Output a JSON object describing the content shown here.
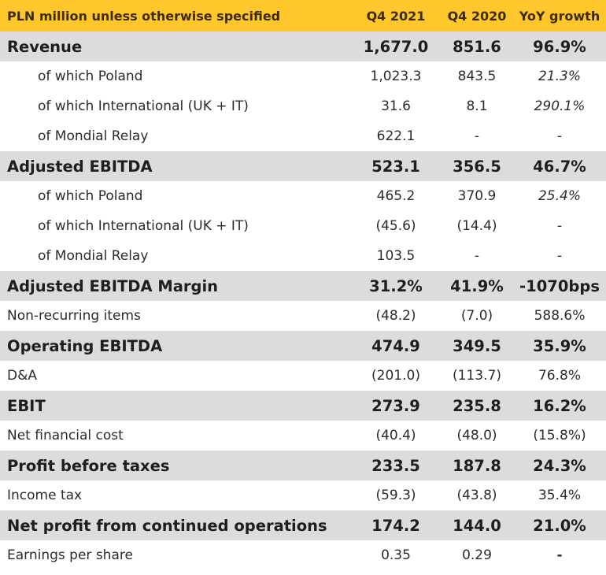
{
  "header": {
    "label": "PLN million unless otherwise specified",
    "q4_2021": "Q4 2021",
    "q4_2020": "Q4 2020",
    "yoy": "YoY growth"
  },
  "rows": [
    {
      "label": "Revenue",
      "q4_2021": "1,677.0",
      "q4_2020": "851.6",
      "yoy": "96.9%"
    },
    {
      "label": "of which Poland",
      "q4_2021": "1,023.3",
      "q4_2020": "843.5",
      "yoy": "21.3%"
    },
    {
      "label": "of which International (UK + IT)",
      "q4_2021": "31.6",
      "q4_2020": "8.1",
      "yoy": "290.1%"
    },
    {
      "label": "of Mondial Relay",
      "q4_2021": "622.1",
      "q4_2020": "-",
      "yoy": "-"
    },
    {
      "label": "Adjusted EBITDA",
      "q4_2021": "523.1",
      "q4_2020": "356.5",
      "yoy": "46.7%"
    },
    {
      "label": "of which Poland",
      "q4_2021": "465.2",
      "q4_2020": "370.9",
      "yoy": "25.4%"
    },
    {
      "label": "of which International (UK + IT)",
      "q4_2021": "(45.6)",
      "q4_2020": "(14.4)",
      "yoy": "-"
    },
    {
      "label": "of Mondial Relay",
      "q4_2021": "103.5",
      "q4_2020": "-",
      "yoy": "-"
    },
    {
      "label": "Adjusted EBITDA Margin",
      "q4_2021": "31.2%",
      "q4_2020": "41.9%",
      "yoy": "-1070bps"
    },
    {
      "label": "Non-recurring items",
      "q4_2021": "(48.2)",
      "q4_2020": "(7.0)",
      "yoy": "588.6%"
    },
    {
      "label": "Operating EBITDA",
      "q4_2021": "474.9",
      "q4_2020": "349.5",
      "yoy": "35.9%"
    },
    {
      "label": "D&A",
      "q4_2021": "(201.0)",
      "q4_2020": "(113.7)",
      "yoy": "76.8%"
    },
    {
      "label": "EBIT",
      "q4_2021": "273.9",
      "q4_2020": "235.8",
      "yoy": "16.2%"
    },
    {
      "label": "Net financial cost",
      "q4_2021": "(40.4)",
      "q4_2020": "(48.0)",
      "yoy": "(15.8%)"
    },
    {
      "label": "Profit before taxes",
      "q4_2021": "233.5",
      "q4_2020": "187.8",
      "yoy": "24.3%"
    },
    {
      "label": "Income tax",
      "q4_2021": "(59.3)",
      "q4_2020": "(43.8)",
      "yoy": "35.4%"
    },
    {
      "label": "Net profit from continued operations",
      "q4_2021": "174.2",
      "q4_2020": "144.0",
      "yoy": "21.0%"
    },
    {
      "label": "Earnings per share",
      "q4_2021": "0.35",
      "q4_2020": "0.29",
      "yoy": "-"
    }
  ],
  "colors": {
    "header_bg": "#FFC72C",
    "bold_row_bg": "#DCDCDC"
  }
}
